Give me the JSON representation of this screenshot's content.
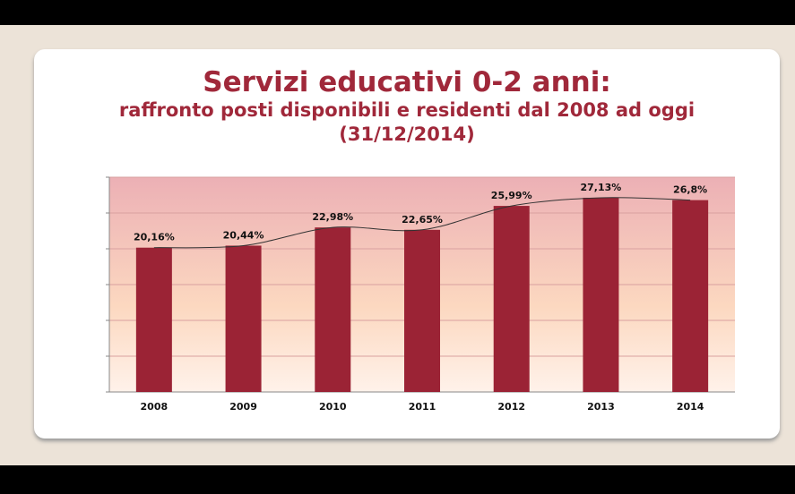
{
  "chart_data": {
    "type": "bar",
    "title": "Servizi educativi 0-2 anni:",
    "subtitle": "raffronto posti disponibili e residenti dal 2008 ad oggi (31/12/2014)",
    "categories": [
      "2008",
      "2009",
      "2010",
      "2011",
      "2012",
      "2013",
      "2014"
    ],
    "values": [
      20.16,
      20.44,
      22.98,
      22.65,
      25.99,
      27.13,
      26.8
    ],
    "value_labels": [
      "20,16%",
      "20,44%",
      "22,98%",
      "22,65%",
      "25,99%",
      "27,13%",
      "26,8%"
    ],
    "color": "#9b2335",
    "ylim": [
      0,
      30
    ],
    "yticks": [
      0,
      5,
      10,
      15,
      20,
      25,
      30
    ],
    "grid": true,
    "trendline": true
  }
}
